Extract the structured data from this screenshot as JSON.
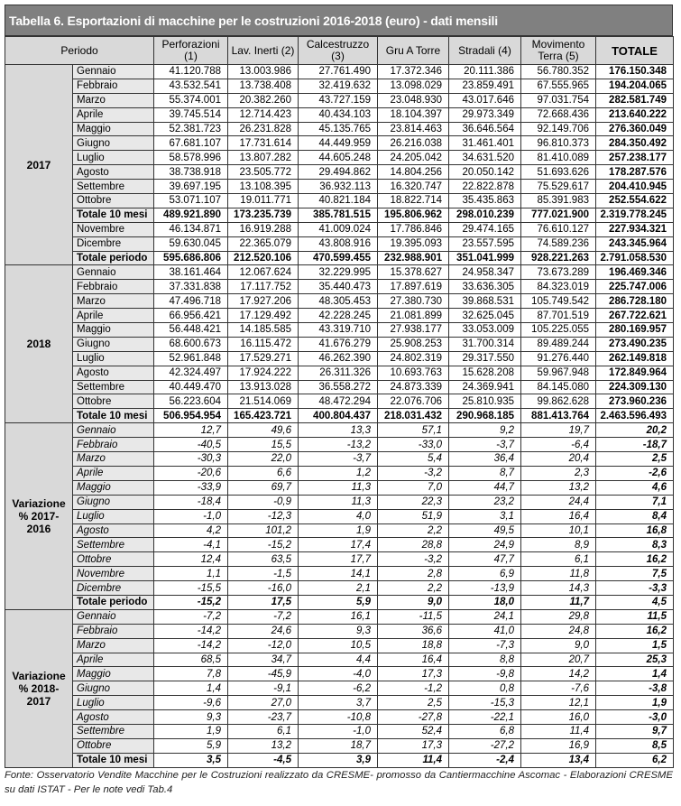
{
  "title": "Tabella 6. Esportazioni di macchine per le costruzioni 2016-2018 (euro) - dati mensili",
  "headers": [
    "Periodo",
    "Perforazioni (1)",
    "Lav. Inerti (2)",
    "Calcestruzzo (3)",
    "Gru A Torre",
    "Stradali (4)",
    "Movimento Terra (5)",
    "TOTALE"
  ],
  "sections": [
    {
      "label": "2017",
      "italic": false,
      "rows": [
        {
          "label": "Gennaio",
          "values": [
            "41.120.788",
            "13.003.986",
            "27.761.490",
            "17.372.346",
            "20.111.386",
            "56.780.352",
            "176.150.348"
          ]
        },
        {
          "label": "Febbraio",
          "values": [
            "43.532.541",
            "13.738.408",
            "32.419.632",
            "13.098.029",
            "23.859.491",
            "67.555.965",
            "194.204.065"
          ]
        },
        {
          "label": "Marzo",
          "values": [
            "55.374.001",
            "20.382.260",
            "43.727.159",
            "23.048.930",
            "43.017.646",
            "97.031.754",
            "282.581.749"
          ]
        },
        {
          "label": "Aprile",
          "values": [
            "39.745.514",
            "12.714.423",
            "40.434.103",
            "18.104.397",
            "29.973.349",
            "72.668.436",
            "213.640.222"
          ]
        },
        {
          "label": "Maggio",
          "values": [
            "52.381.723",
            "26.231.828",
            "45.135.765",
            "23.814.463",
            "36.646.564",
            "92.149.706",
            "276.360.049"
          ]
        },
        {
          "label": "Giugno",
          "values": [
            "67.681.107",
            "17.731.614",
            "44.449.959",
            "26.216.038",
            "31.461.401",
            "96.810.373",
            "284.350.492"
          ]
        },
        {
          "label": "Luglio",
          "values": [
            "58.578.996",
            "13.807.282",
            "44.605.248",
            "24.205.042",
            "34.631.520",
            "81.410.089",
            "257.238.177"
          ]
        },
        {
          "label": "Agosto",
          "values": [
            "38.738.918",
            "23.505.772",
            "29.494.862",
            "14.804.256",
            "20.050.142",
            "51.693.626",
            "178.287.576"
          ]
        },
        {
          "label": "Settembre",
          "values": [
            "39.697.195",
            "13.108.395",
            "36.932.113",
            "16.320.747",
            "22.822.878",
            "75.529.617",
            "204.410.945"
          ]
        },
        {
          "label": "Ottobre",
          "values": [
            "53.071.107",
            "19.011.771",
            "40.821.184",
            "18.822.714",
            "35.435.863",
            "85.391.983",
            "252.554.622"
          ]
        },
        {
          "label": "Totale 10 mesi",
          "total": true,
          "values": [
            "489.921.890",
            "173.235.739",
            "385.781.515",
            "195.806.962",
            "298.010.239",
            "777.021.900",
            "2.319.778.245"
          ]
        },
        {
          "label": "Novembre",
          "values": [
            "46.134.871",
            "16.919.288",
            "41.009.024",
            "17.786.846",
            "29.474.165",
            "76.610.127",
            "227.934.321"
          ]
        },
        {
          "label": "Dicembre",
          "values": [
            "59.630.045",
            "22.365.079",
            "43.808.916",
            "19.395.093",
            "23.557.595",
            "74.589.236",
            "243.345.964"
          ]
        },
        {
          "label": "Totale periodo",
          "total": true,
          "values": [
            "595.686.806",
            "212.520.106",
            "470.599.455",
            "232.988.901",
            "351.041.999",
            "928.221.263",
            "2.791.058.530"
          ]
        }
      ]
    },
    {
      "label": "2018",
      "italic": false,
      "rows": [
        {
          "label": "Gennaio",
          "values": [
            "38.161.464",
            "12.067.624",
            "32.229.995",
            "15.378.627",
            "24.958.347",
            "73.673.289",
            "196.469.346"
          ]
        },
        {
          "label": "Febbraio",
          "values": [
            "37.331.838",
            "17.117.752",
            "35.440.473",
            "17.897.619",
            "33.636.305",
            "84.323.019",
            "225.747.006"
          ]
        },
        {
          "label": "Marzo",
          "values": [
            "47.496.718",
            "17.927.206",
            "48.305.453",
            "27.380.730",
            "39.868.531",
            "105.749.542",
            "286.728.180"
          ]
        },
        {
          "label": "Aprile",
          "values": [
            "66.956.421",
            "17.129.492",
            "42.228.245",
            "21.081.899",
            "32.625.045",
            "87.701.519",
            "267.722.621"
          ]
        },
        {
          "label": "Maggio",
          "values": [
            "56.448.421",
            "14.185.585",
            "43.319.710",
            "27.938.177",
            "33.053.009",
            "105.225.055",
            "280.169.957"
          ]
        },
        {
          "label": "Giugno",
          "values": [
            "68.600.673",
            "16.115.472",
            "41.676.279",
            "25.908.253",
            "31.700.314",
            "89.489.244",
            "273.490.235"
          ]
        },
        {
          "label": "Luglio",
          "values": [
            "52.961.848",
            "17.529.271",
            "46.262.390",
            "24.802.319",
            "29.317.550",
            "91.276.440",
            "262.149.818"
          ]
        },
        {
          "label": "Agosto",
          "values": [
            "42.324.497",
            "17.924.222",
            "26.311.326",
            "10.693.763",
            "15.628.208",
            "59.967.948",
            "172.849.964"
          ]
        },
        {
          "label": "Settembre",
          "values": [
            "40.449.470",
            "13.913.028",
            "36.558.272",
            "24.873.339",
            "24.369.941",
            "84.145.080",
            "224.309.130"
          ]
        },
        {
          "label": "Ottobre",
          "values": [
            "56.223.604",
            "21.514.069",
            "48.472.294",
            "22.076.706",
            "25.810.935",
            "99.862.628",
            "273.960.236"
          ]
        },
        {
          "label": "Totale 10 mesi",
          "total": true,
          "values": [
            "506.954.954",
            "165.423.721",
            "400.804.437",
            "218.031.432",
            "290.968.185",
            "881.413.764",
            "2.463.596.493"
          ]
        }
      ]
    },
    {
      "label": "Variazione % 2017-2016",
      "italic": true,
      "rows": [
        {
          "label": "Gennaio",
          "values": [
            "12,7",
            "49,6",
            "13,3",
            "57,1",
            "9,2",
            "19,7",
            "20,2"
          ]
        },
        {
          "label": "Febbraio",
          "values": [
            "-40,5",
            "15,5",
            "-13,2",
            "-33,0",
            "-3,7",
            "-6,4",
            "-18,7"
          ]
        },
        {
          "label": "Marzo",
          "values": [
            "-30,3",
            "22,0",
            "-3,7",
            "5,4",
            "36,4",
            "20,4",
            "2,5"
          ]
        },
        {
          "label": "Aprile",
          "values": [
            "-20,6",
            "6,6",
            "1,2",
            "-3,2",
            "8,7",
            "2,3",
            "-2,6"
          ]
        },
        {
          "label": "Maggio",
          "values": [
            "-33,9",
            "69,7",
            "11,3",
            "7,0",
            "44,7",
            "13,2",
            "4,6"
          ]
        },
        {
          "label": "Giugno",
          "values": [
            "-18,4",
            "-0,9",
            "11,3",
            "22,3",
            "23,2",
            "24,4",
            "7,1"
          ]
        },
        {
          "label": "Luglio",
          "values": [
            "-1,0",
            "-12,3",
            "4,0",
            "51,9",
            "3,1",
            "16,4",
            "8,4"
          ]
        },
        {
          "label": "Agosto",
          "values": [
            "4,2",
            "101,2",
            "1,9",
            "2,2",
            "49,5",
            "10,1",
            "16,8"
          ]
        },
        {
          "label": "Settembre",
          "values": [
            "-4,1",
            "-15,2",
            "17,4",
            "28,8",
            "24,9",
            "8,9",
            "8,3"
          ]
        },
        {
          "label": "Ottobre",
          "values": [
            "12,4",
            "63,5",
            "17,7",
            "-3,2",
            "47,7",
            "6,1",
            "16,2"
          ]
        },
        {
          "label": "Novembre",
          "values": [
            "1,1",
            "-1,5",
            "14,1",
            "2,8",
            "6,9",
            "11,8",
            "7,5"
          ]
        },
        {
          "label": "Dicembre",
          "values": [
            "-15,5",
            "-16,0",
            "2,1",
            "2,2",
            "-13,9",
            "14,3",
            "-3,3"
          ]
        },
        {
          "label": "Totale periodo",
          "total": true,
          "values": [
            "-15,2",
            "17,5",
            "5,9",
            "9,0",
            "18,0",
            "11,7",
            "4,5"
          ]
        }
      ]
    },
    {
      "label": "Variazione % 2018-2017",
      "italic": true,
      "rows": [
        {
          "label": "Gennaio",
          "values": [
            "-7,2",
            "-7,2",
            "16,1",
            "-11,5",
            "24,1",
            "29,8",
            "11,5"
          ]
        },
        {
          "label": "Febbraio",
          "values": [
            "-14,2",
            "24,6",
            "9,3",
            "36,6",
            "41,0",
            "24,8",
            "16,2"
          ]
        },
        {
          "label": "Marzo",
          "values": [
            "-14,2",
            "-12,0",
            "10,5",
            "18,8",
            "-7,3",
            "9,0",
            "1,5"
          ]
        },
        {
          "label": "Aprile",
          "values": [
            "68,5",
            "34,7",
            "4,4",
            "16,4",
            "8,8",
            "20,7",
            "25,3"
          ]
        },
        {
          "label": "Maggio",
          "values": [
            "7,8",
            "-45,9",
            "-4,0",
            "17,3",
            "-9,8",
            "14,2",
            "1,4"
          ]
        },
        {
          "label": "Giugno",
          "values": [
            "1,4",
            "-9,1",
            "-6,2",
            "-1,2",
            "0,8",
            "-7,6",
            "-3,8"
          ]
        },
        {
          "label": "Luglio",
          "values": [
            "-9,6",
            "27,0",
            "3,7",
            "2,5",
            "-15,3",
            "12,1",
            "1,9"
          ]
        },
        {
          "label": "Agosto",
          "values": [
            "9,3",
            "-23,7",
            "-10,8",
            "-27,8",
            "-22,1",
            "16,0",
            "-3,0"
          ]
        },
        {
          "label": "Settembre",
          "values": [
            "1,9",
            "6,1",
            "-1,0",
            "52,4",
            "6,8",
            "11,4",
            "9,7"
          ]
        },
        {
          "label": "Ottobre",
          "values": [
            "5,9",
            "13,2",
            "18,7",
            "17,3",
            "-27,2",
            "16,9",
            "8,5"
          ]
        },
        {
          "label": "Totale 10 mesi",
          "total": true,
          "values": [
            "3,5",
            "-4,5",
            "3,9",
            "11,4",
            "-2,4",
            "13,4",
            "6,2"
          ]
        }
      ]
    }
  ],
  "footer": "Fonte: Osservatorio Vendite Macchine per le Costruzioni realizzato da  CRESME- promosso da Cantiermacchine Ascomac - Elaborazioni CRESME  su dati ISTAT  - Per le note vedi Tab.4"
}
